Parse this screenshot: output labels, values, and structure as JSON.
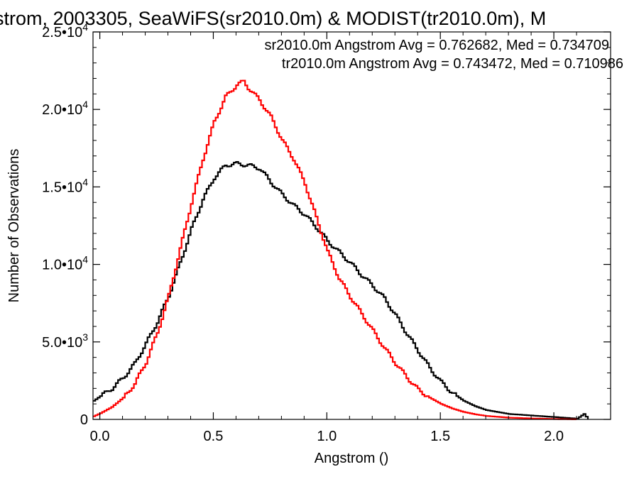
{
  "chart_data": {
    "type": "line",
    "title": "strom, 2003305, SeaWiFS(sr2010.0m) & MODIST(tr2010.0m), M",
    "xlabel": "Angstrom ()",
    "ylabel": "Number of Observations",
    "xlim": [
      -0.03,
      2.25
    ],
    "ylim": [
      0,
      25000
    ],
    "xticks": [
      0.0,
      0.5,
      1.0,
      1.5,
      2.0
    ],
    "xtick_labels": [
      "0.0",
      "0.5",
      "1.0",
      "1.5",
      "2.0"
    ],
    "yticks": [
      {
        "value": 0,
        "mantissa": "0",
        "exp": ""
      },
      {
        "value": 5000,
        "mantissa": "5.0•10",
        "exp": "3"
      },
      {
        "value": 10000,
        "mantissa": "1.0•10",
        "exp": "4"
      },
      {
        "value": 15000,
        "mantissa": "1.5•10",
        "exp": "4"
      },
      {
        "value": 20000,
        "mantissa": "2.0•10",
        "exp": "4"
      },
      {
        "value": 25000,
        "mantissa": "2.5•10",
        "exp": "4"
      }
    ],
    "legend": [
      {
        "text": "sr2010.0m Angstrom Avg = 0.762682, Med = 0.734709",
        "color": "#000000"
      },
      {
        "text": "tr2010.0m Angstrom Avg = 0.743472, Med = 0.710986",
        "color": "#ff0000"
      }
    ],
    "legend_position": "top-right",
    "step_style": "histogram",
    "series": [
      {
        "color": "#000000",
        "x": [
          -0.03,
          0.0,
          0.05,
          0.1,
          0.15,
          0.2,
          0.25,
          0.3,
          0.35,
          0.4,
          0.45,
          0.5,
          0.55,
          0.6,
          0.65,
          0.7,
          0.75,
          0.8,
          0.85,
          0.9,
          0.95,
          1.0,
          1.05,
          1.1,
          1.15,
          1.2,
          1.25,
          1.3,
          1.35,
          1.4,
          1.45,
          1.5,
          1.55,
          1.6,
          1.65,
          1.7,
          1.8,
          1.9,
          2.0,
          2.1,
          2.13,
          2.15
        ],
        "y": [
          1200,
          1500,
          2000,
          2700,
          3600,
          4900,
          6300,
          8000,
          10100,
          12300,
          14200,
          15600,
          16400,
          16500,
          16400,
          16200,
          15300,
          14500,
          13800,
          13200,
          12400,
          11500,
          10800,
          10100,
          9300,
          8600,
          7800,
          6700,
          5500,
          4400,
          3300,
          2400,
          1700,
          1200,
          850,
          600,
          350,
          250,
          150,
          50,
          350,
          0
        ]
      },
      {
        "color": "#ff0000",
        "x": [
          -0.03,
          0.0,
          0.05,
          0.1,
          0.15,
          0.2,
          0.25,
          0.3,
          0.35,
          0.4,
          0.45,
          0.5,
          0.55,
          0.6,
          0.63,
          0.65,
          0.7,
          0.75,
          0.8,
          0.85,
          0.9,
          0.95,
          1.0,
          1.05,
          1.1,
          1.15,
          1.2,
          1.25,
          1.3,
          1.35,
          1.4,
          1.45,
          1.5,
          1.55,
          1.6,
          1.65,
          1.7,
          1.8,
          1.9,
          2.0,
          2.1
        ],
        "y": [
          200,
          400,
          800,
          1400,
          2300,
          3700,
          5600,
          8000,
          11000,
          14000,
          16800,
          19200,
          20800,
          21600,
          21800,
          21400,
          20600,
          19500,
          18000,
          16800,
          15200,
          13000,
          10800,
          9100,
          7900,
          6800,
          5700,
          4600,
          3600,
          2700,
          1900,
          1400,
          1000,
          700,
          480,
          330,
          220,
          110,
          60,
          25,
          0
        ]
      }
    ]
  }
}
